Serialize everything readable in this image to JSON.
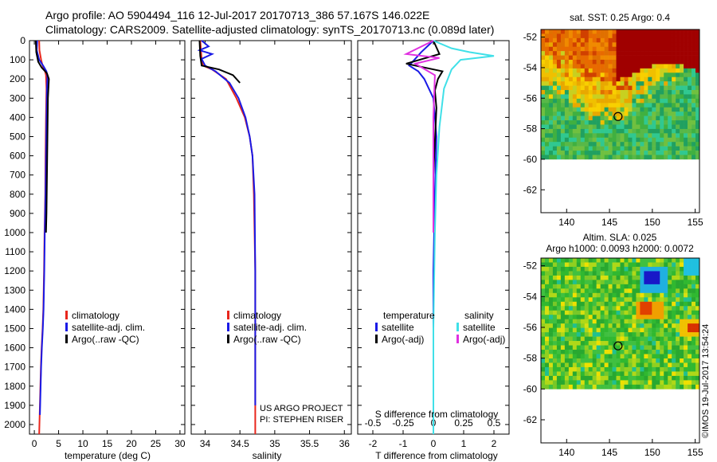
{
  "header": {
    "line1": "Argo profile: AO 5904494_116 12-Jul-2017 20170713_386 57.167S 146.022E",
    "line2": "Climatology: CARS2009. Satellite-adjusted climatology: synTS_20170713.nc (0.089d later)"
  },
  "footer_note": "©IMOS 19-Jul-2017 13:54:24",
  "project": {
    "line1": "US ARGO PROJECT",
    "line2": "PI: STEPHEN RISER"
  },
  "colors": {
    "climatology": "#e8261c",
    "satellite": "#1a1ae6",
    "argo": "#000000",
    "sal_satellite": "#40e0e8",
    "sal_argo": "#e030e0"
  },
  "chart_data": [
    {
      "type": "line",
      "panel": "temperature",
      "xlabel": "temperature (deg C)",
      "ylabel": "",
      "xlim": [
        -1,
        31
      ],
      "ylim": [
        2050,
        0
      ],
      "xticks": [
        "0",
        "5",
        "10",
        "15",
        "20",
        "25",
        "30"
      ],
      "xtick_values": [
        0,
        5,
        10,
        15,
        20,
        25,
        30
      ],
      "yticks": [
        "0",
        "100",
        "200",
        "300",
        "400",
        "500",
        "600",
        "700",
        "800",
        "900",
        "1000",
        "1100",
        "1200",
        "1300",
        "1400",
        "1500",
        "1600",
        "1700",
        "1800",
        "1900",
        "2000"
      ],
      "legend": [
        "climatology",
        "satellite-adj. clim.",
        "Argo(..raw -QC)"
      ],
      "legend_placement": "lower-center",
      "series": [
        {
          "name": "climatology",
          "color_key": "climatology",
          "x": [
            1.0,
            1.05,
            1.4,
            1.7,
            2.1,
            2.4,
            2.5,
            2.4,
            2.3,
            2.25,
            2.1,
            2.0,
            1.85,
            1.7,
            1.5,
            1.35,
            1.25,
            1.1,
            1.0
          ],
          "y": [
            0,
            50,
            100,
            130,
            150,
            180,
            250,
            400,
            600,
            800,
            1000,
            1200,
            1400,
            1500,
            1600,
            1700,
            1800,
            1950,
            2050
          ]
        },
        {
          "name": "satellite-adj. clim.",
          "color_key": "satellite",
          "x": [
            0.6,
            0.5,
            1.0,
            1.8,
            2.5,
            2.7,
            2.6,
            2.5,
            2.4,
            2.3,
            2.15,
            2.05,
            1.9,
            1.75,
            1.55,
            1.4,
            1.3,
            1.15
          ],
          "y": [
            0,
            50,
            100,
            130,
            160,
            190,
            250,
            400,
            600,
            800,
            1000,
            1200,
            1400,
            1500,
            1600,
            1700,
            1800,
            1950
          ]
        },
        {
          "name": "Argo(..raw -QC)",
          "color_key": "argo",
          "x": [
            0.3,
            0.4,
            0.8,
            1.5,
            2.6,
            3.0,
            2.8,
            2.7,
            2.6,
            2.5,
            2.4
          ],
          "y": [
            0,
            60,
            110,
            140,
            170,
            200,
            300,
            500,
            700,
            900,
            1000
          ]
        }
      ]
    },
    {
      "type": "line",
      "panel": "salinity",
      "xlabel": "salinity",
      "ylabel": "",
      "xlim": [
        33.8,
        36.1
      ],
      "ylim": [
        2050,
        0
      ],
      "xticks": [
        "34",
        "34.5",
        "35",
        "35.5",
        "36"
      ],
      "xtick_values": [
        34,
        34.5,
        35,
        35.5,
        36
      ],
      "legend": [
        "climatology",
        "satellite-adj. clim.",
        "Argo(..raw -QC)"
      ],
      "legend_placement": "lower-center",
      "series": [
        {
          "name": "climatology",
          "color_key": "climatology",
          "x": [
            33.93,
            33.95,
            33.97,
            34.1,
            34.3,
            34.45,
            34.57,
            34.64,
            34.68,
            34.7,
            34.71,
            34.72,
            34.72,
            34.72,
            34.72
          ],
          "y": [
            0,
            100,
            130,
            150,
            200,
            300,
            400,
            500,
            600,
            800,
            1000,
            1200,
            1500,
            1800,
            2050
          ]
        },
        {
          "name": "satellite-adj. clim.",
          "color_key": "satellite",
          "x": [
            33.95,
            34.05,
            33.92,
            34.1,
            33.95,
            34.0,
            34.15,
            34.35,
            34.48,
            34.58,
            34.64,
            34.68,
            34.71,
            34.72,
            34.72
          ],
          "y": [
            0,
            30,
            50,
            70,
            95,
            130,
            160,
            220,
            300,
            400,
            500,
            600,
            800,
            1200,
            1900
          ]
        },
        {
          "name": "Argo(..raw -QC)",
          "color_key": "argo",
          "x": [
            33.92,
            33.93,
            33.95,
            34.2,
            34.4,
            34.5
          ],
          "y": [
            0,
            80,
            130,
            150,
            180,
            220
          ]
        }
      ]
    },
    {
      "type": "line",
      "panel": "difference",
      "xlabel": "T difference from climatology",
      "xlabel_top": "S difference from climatology",
      "xlim": [
        -2.5,
        2.5
      ],
      "ylim": [
        2050,
        0
      ],
      "xticks": [
        "-2",
        "-1",
        "0",
        "1",
        "2"
      ],
      "xtick_values": [
        -2,
        -1,
        0,
        1,
        2
      ],
      "xticks_s": [
        "-0.5",
        "-0.25",
        "0",
        "0.25",
        "0.5"
      ],
      "legend_titles": [
        "temperature",
        "salinity"
      ],
      "legend": [
        "satellite",
        "Argo(-adj)",
        "satellite",
        "Argo(-adj)"
      ],
      "legend_placement": "lower-center",
      "series": [
        {
          "name": "satellite",
          "color_key": "satellite",
          "x": [
            0,
            -0.4,
            -0.8,
            -0.5,
            -0.3,
            0,
            0.1,
            0.05,
            0,
            0,
            0,
            0
          ],
          "y": [
            0,
            60,
            130,
            160,
            200,
            300,
            500,
            800,
            1200,
            1500,
            1800,
            2050
          ]
        },
        {
          "name": "Argo(-adj)",
          "color_key": "argo",
          "x": [
            0,
            0.2,
            -0.9,
            0.3,
            0.15,
            0.05,
            0.1,
            0,
            0
          ],
          "y": [
            0,
            70,
            120,
            160,
            200,
            260,
            350,
            700,
            1000
          ]
        },
        {
          "name": "satellite",
          "color_key": "sal_satellite",
          "x": [
            0,
            0.6,
            1.2,
            2.0,
            0.9,
            0.6,
            0.35,
            0.2,
            0.1,
            0.05,
            0,
            0
          ],
          "y": [
            0,
            40,
            60,
            80,
            100,
            150,
            250,
            450,
            700,
            1000,
            1500,
            2050
          ]
        },
        {
          "name": "Argo(-adj)",
          "color_key": "sal_argo",
          "x": [
            0,
            -0.9,
            0.2,
            -0.6,
            0.05,
            0,
            0
          ],
          "y": [
            0,
            70,
            90,
            120,
            180,
            400,
            1000
          ]
        }
      ]
    },
    {
      "type": "heatmap",
      "panel": "sst",
      "title": "sat. SST: 0.25 Argo: 0.4",
      "xlim": [
        137,
        155.5
      ],
      "ylim": [
        -63.5,
        -51.5
      ],
      "xticks": [
        "140",
        "145",
        "150",
        "155"
      ],
      "xtick_values": [
        140,
        145,
        150,
        155
      ],
      "yticks": [
        "-52",
        "-54",
        "-56",
        "-58",
        "-60",
        "-62"
      ],
      "ytick_values": [
        -52,
        -54,
        -56,
        -58,
        -60,
        -62
      ],
      "data_extent_lat": [
        -60,
        -51.5
      ],
      "marker": {
        "lon": 146.0,
        "lat": -57.2
      }
    },
    {
      "type": "heatmap",
      "panel": "sla",
      "title": "Altim. SLA: 0.025",
      "subtitle": "Argo h1000: 0.0093 h2000: 0.0072",
      "xlim": [
        137,
        155.5
      ],
      "ylim": [
        -63.5,
        -51.5
      ],
      "xticks": [
        "140",
        "145",
        "150",
        "155"
      ],
      "xtick_values": [
        140,
        145,
        150,
        155
      ],
      "yticks": [
        "-52",
        "-54",
        "-56",
        "-58",
        "-60",
        "-62"
      ],
      "ytick_values": [
        -52,
        -54,
        -56,
        -58,
        -60,
        -62
      ],
      "data_extent_lat": [
        -60,
        -51.5
      ],
      "marker": {
        "lon": 146.0,
        "lat": -57.2
      }
    }
  ]
}
